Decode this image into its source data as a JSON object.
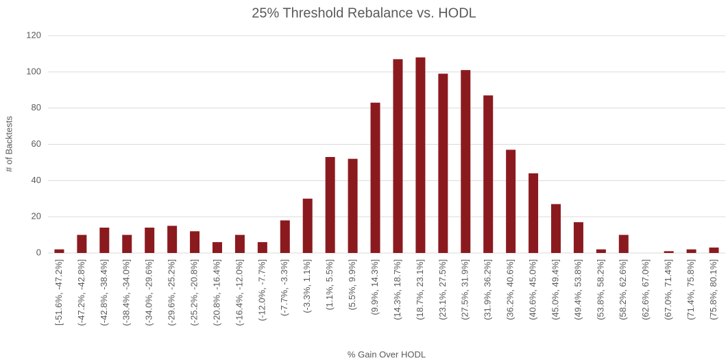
{
  "chart_data": {
    "type": "bar",
    "title": "25% Threshold Rebalance vs. HODL",
    "x_label": "% Gain Over HODL",
    "y_label": "# of Backtests",
    "categories": [
      "[-51.6%, -47.2%]",
      "(-47.2%, -42.8%]",
      "(-42.8%, -38.4%]",
      "(-38.4%, -34.0%]",
      "(-34.0%, -29.6%]",
      "(-29.6%, -25.2%]",
      "(-25.2%, -20.8%]",
      "(-20.8%, -16.4%]",
      "(-16.4%, -12.0%]",
      "(-12.0%, -7.7%]",
      "(-7.7%, -3.3%]",
      "(-3.3%, 1.1%]",
      "(1.1%, 5.5%]",
      "(5.5%, 9.9%]",
      "(9.9%, 14.3%]",
      "(14.3%, 18.7%]",
      "(18.7%, 23.1%]",
      "(23.1%, 27.5%]",
      "(27.5%, 31.9%]",
      "(31.9%, 36.2%]",
      "(36.2%, 40.6%]",
      "(40.6%, 45.0%]",
      "(45.0%, 49.4%]",
      "(49.4%, 53.8%]",
      "(53.8%, 58.2%]",
      "(58.2%, 62.6%]",
      "(62.6%, 67.0%]",
      "(67.0%, 71.4%]",
      "(71.4%, 75.8%]",
      "(75.8%, 80.1%]"
    ],
    "values": [
      2,
      10,
      14,
      10,
      14,
      15,
      12,
      6,
      10,
      6,
      18,
      30,
      53,
      52,
      83,
      107,
      108,
      99,
      101,
      87,
      57,
      44,
      27,
      17,
      2,
      10,
      0,
      1,
      2,
      3
    ],
    "color": "#8b1a1f",
    "ylim": [
      0,
      120
    ],
    "yticks": [
      0,
      20,
      40,
      60,
      80,
      100,
      120
    ],
    "grid": true
  }
}
